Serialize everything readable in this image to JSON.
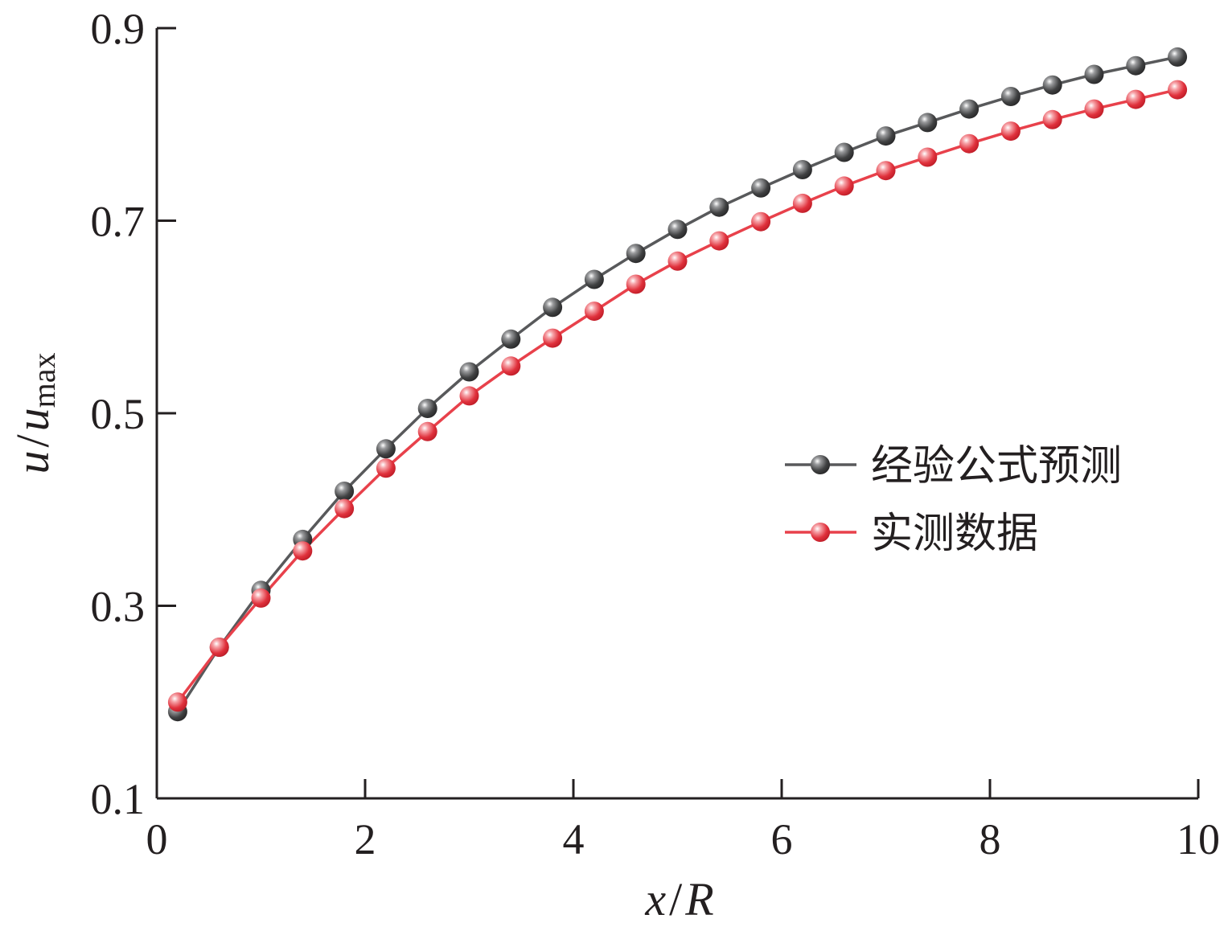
{
  "chart_data": {
    "type": "line",
    "xlabel": {
      "var": "x",
      "slash": "/",
      "ref": "R"
    },
    "ylabel": {
      "var": "u",
      "slash": "/",
      "ref": "u",
      "sub": "max"
    },
    "xlim": [
      0,
      10
    ],
    "ylim": [
      0.1,
      0.9
    ],
    "xticks": [
      "0",
      "2",
      "4",
      "6",
      "8",
      "10"
    ],
    "xtick_values": [
      0,
      2,
      4,
      6,
      8,
      10
    ],
    "yticks": [
      "0.1",
      "0.3",
      "0.5",
      "0.7",
      "0.9"
    ],
    "ytick_values": [
      0.1,
      0.3,
      0.5,
      0.7,
      0.9
    ],
    "grid": false,
    "legend_position": "center-right",
    "x": [
      0.2,
      0.6,
      1.0,
      1.4,
      1.8,
      2.2,
      2.6,
      3.0,
      3.4,
      3.8,
      4.2,
      4.6,
      5.0,
      5.4,
      5.8,
      6.2,
      6.6,
      7.0,
      7.4,
      7.8,
      8.2,
      8.6,
      9.0,
      9.4,
      9.8
    ],
    "series": [
      {
        "name": "经验公式预测",
        "color": "#58595b",
        "values": [
          0.19,
          0.257,
          0.316,
          0.369,
          0.419,
          0.463,
          0.505,
          0.543,
          0.577,
          0.61,
          0.639,
          0.666,
          0.691,
          0.714,
          0.734,
          0.753,
          0.771,
          0.788,
          0.802,
          0.816,
          0.829,
          0.841,
          0.852,
          0.861,
          0.87
        ]
      },
      {
        "name": "实测数据",
        "color": "#e8414b",
        "values": [
          0.2,
          0.257,
          0.308,
          0.357,
          0.401,
          0.443,
          0.481,
          0.518,
          0.549,
          0.578,
          0.606,
          0.634,
          0.658,
          0.679,
          0.699,
          0.718,
          0.736,
          0.752,
          0.766,
          0.78,
          0.793,
          0.805,
          0.816,
          0.826,
          0.836
        ]
      }
    ]
  }
}
